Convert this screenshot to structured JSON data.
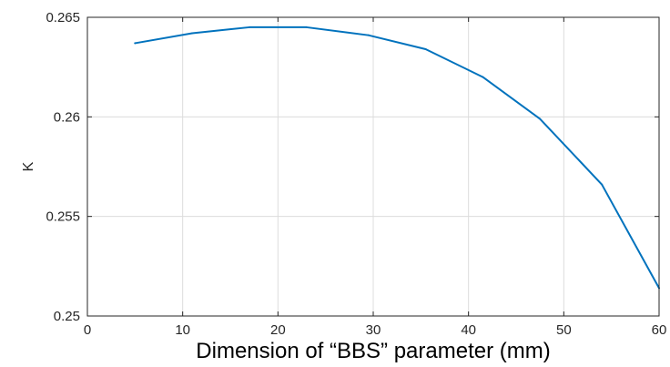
{
  "chart_data": {
    "type": "line",
    "xlabel": "Dimension of “BBS” parameter (mm)",
    "ylabel": "K",
    "xlim": [
      0,
      60
    ],
    "ylim": [
      0.25,
      0.265
    ],
    "xticks": [
      0,
      10,
      20,
      30,
      40,
      50,
      60
    ],
    "yticks": [
      0.25,
      0.255,
      0.26,
      0.265
    ],
    "xtick_labels": [
      "0",
      "10",
      "20",
      "30",
      "40",
      "50",
      "60"
    ],
    "ytick_labels": [
      "0.25",
      "0.255",
      "0.26",
      "0.265"
    ],
    "grid": true,
    "series": [
      {
        "color": "#0072BD",
        "x": [
          5,
          11,
          17,
          23,
          29.5,
          35.5,
          41.5,
          47.5,
          54,
          60
        ],
        "y": [
          0.2637,
          0.2642,
          0.2645,
          0.2645,
          0.2641,
          0.2634,
          0.262,
          0.2599,
          0.2566,
          0.2514
        ]
      }
    ]
  }
}
